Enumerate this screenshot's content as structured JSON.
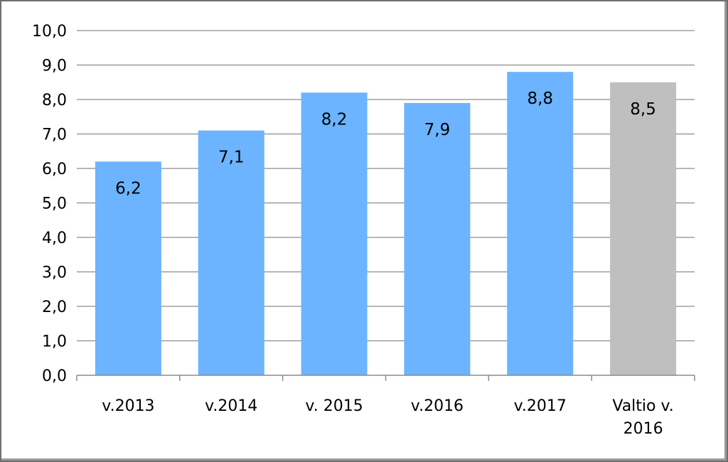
{
  "chart_data": {
    "type": "bar",
    "categories": [
      [
        "v.2013"
      ],
      [
        "v.2014"
      ],
      [
        "v. 2015"
      ],
      [
        "v.2016"
      ],
      [
        "v.2017"
      ],
      [
        "Valtio v.",
        "2016"
      ]
    ],
    "values": [
      6.2,
      7.1,
      8.2,
      7.9,
      8.8,
      8.5
    ],
    "data_labels": [
      "6,2",
      "7,1",
      "8,2",
      "7,9",
      "8,8",
      "8,5"
    ],
    "bar_colors": [
      "#6cb4ff",
      "#6cb4ff",
      "#6cb4ff",
      "#6cb4ff",
      "#6cb4ff",
      "#bfbfbf"
    ],
    "ylim": [
      0,
      10
    ],
    "y_ticks": [
      {
        "value": 0,
        "label": "0,0"
      },
      {
        "value": 1,
        "label": "1,0"
      },
      {
        "value": 2,
        "label": "2,0"
      },
      {
        "value": 3,
        "label": "3,0"
      },
      {
        "value": 4,
        "label": "4,0"
      },
      {
        "value": 5,
        "label": "5,0"
      },
      {
        "value": 6,
        "label": "6,0"
      },
      {
        "value": 7,
        "label": "7,0"
      },
      {
        "value": 8,
        "label": "8,0"
      },
      {
        "value": 9,
        "label": "9,0"
      },
      {
        "value": 10,
        "label": "10,0"
      }
    ],
    "grid": true,
    "legend": "none",
    "gridline_color": "#8c8c8c"
  }
}
